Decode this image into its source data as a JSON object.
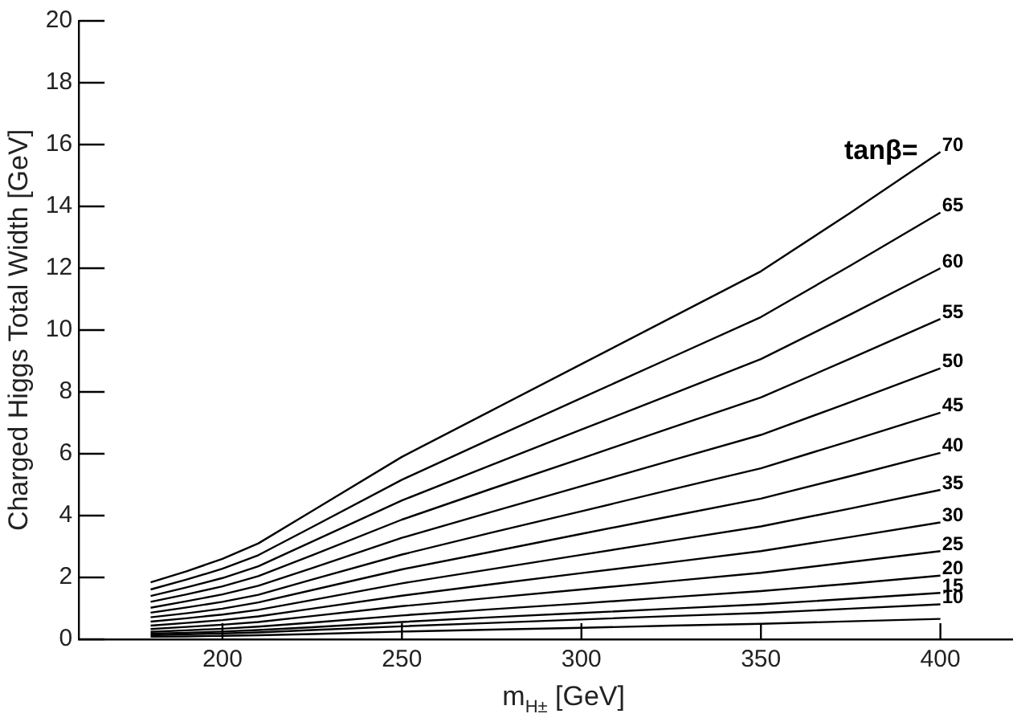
{
  "chart_data": {
    "type": "line",
    "xlabel": "m$_{H±}$ [GeV]",
    "ylabel": "Charged Higgs Total Width [GeV]",
    "legend_title": "tanβ=",
    "x": [
      180,
      190,
      200,
      210,
      225,
      250,
      275,
      300,
      325,
      350,
      375,
      400
    ],
    "xlim": [
      160,
      420
    ],
    "xticks": [
      200,
      250,
      300,
      350,
      400
    ],
    "ylim": [
      0,
      20
    ],
    "yticks": [
      0,
      2,
      4,
      6,
      8,
      10,
      12,
      14,
      16,
      18,
      20
    ],
    "grid": false,
    "marker": "none",
    "line_style": "solid",
    "series": [
      {
        "name": "70",
        "color": "#000000",
        "values": [
          1.84,
          2.2,
          2.6,
          3.1,
          4.15,
          5.9,
          7.4,
          8.9,
          10.4,
          11.9,
          13.8,
          15.76
        ]
      },
      {
        "name": "65",
        "color": "#000000",
        "values": [
          1.61,
          1.93,
          2.28,
          2.72,
          3.63,
          5.16,
          6.49,
          7.8,
          9.11,
          10.42,
          12.09,
          13.8
        ]
      },
      {
        "name": "60",
        "color": "#000000",
        "values": [
          1.4,
          1.68,
          1.98,
          2.36,
          3.16,
          4.49,
          5.64,
          6.78,
          7.92,
          9.06,
          10.51,
          12.0
        ]
      },
      {
        "name": "55",
        "color": "#000000",
        "values": [
          1.21,
          1.45,
          1.71,
          2.04,
          2.72,
          3.87,
          4.87,
          5.85,
          6.84,
          7.82,
          9.08,
          10.36
        ]
      },
      {
        "name": "50",
        "color": "#000000",
        "values": [
          1.02,
          1.23,
          1.45,
          1.73,
          2.3,
          3.28,
          4.12,
          4.95,
          5.78,
          6.61,
          7.67,
          8.76
        ]
      },
      {
        "name": "45",
        "color": "#000000",
        "values": [
          0.86,
          1.03,
          1.21,
          1.44,
          1.93,
          2.74,
          3.45,
          4.14,
          4.84,
          5.53,
          6.42,
          7.33
        ]
      },
      {
        "name": "40",
        "color": "#000000",
        "values": [
          0.71,
          0.84,
          0.99,
          1.19,
          1.59,
          2.26,
          2.83,
          3.41,
          3.98,
          4.55,
          5.28,
          6.03
        ]
      },
      {
        "name": "35",
        "color": "#000000",
        "values": [
          0.57,
          0.68,
          0.8,
          0.95,
          1.27,
          1.81,
          2.27,
          2.73,
          3.19,
          3.65,
          4.23,
          4.83
        ]
      },
      {
        "name": "30",
        "color": "#000000",
        "values": [
          0.44,
          0.53,
          0.62,
          0.74,
          0.99,
          1.41,
          1.78,
          2.14,
          2.49,
          2.85,
          3.31,
          3.78
        ]
      },
      {
        "name": "25",
        "color": "#000000",
        "values": [
          0.33,
          0.4,
          0.47,
          0.56,
          0.75,
          1.07,
          1.34,
          1.61,
          1.88,
          2.15,
          2.5,
          2.85
        ]
      },
      {
        "name": "20",
        "color": "#000000",
        "values": [
          0.24,
          0.29,
          0.34,
          0.41,
          0.54,
          0.77,
          0.97,
          1.16,
          1.36,
          1.56,
          1.8,
          2.06
        ]
      },
      {
        "name": "15",
        "color": "#000000",
        "values": [
          0.18,
          0.21,
          0.25,
          0.3,
          0.39,
          0.56,
          0.71,
          0.85,
          0.99,
          1.13,
          1.31,
          1.5
        ]
      },
      {
        "name": "10",
        "color": "#000000",
        "values": [
          0.13,
          0.16,
          0.19,
          0.22,
          0.3,
          0.42,
          0.53,
          0.64,
          0.75,
          0.85,
          0.99,
          1.13
        ]
      },
      {
        "color": "#000000",
        "values": [
          0.08,
          0.09,
          0.11,
          0.13,
          0.17,
          0.25,
          0.31,
          0.37,
          0.44,
          0.5,
          0.58,
          0.66
        ]
      }
    ]
  }
}
